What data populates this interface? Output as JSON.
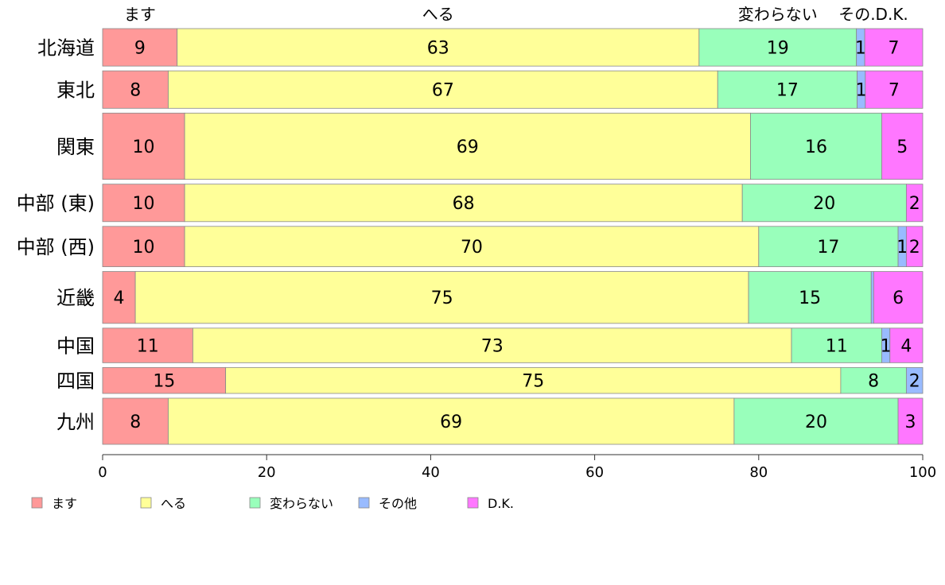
{
  "chart_data": {
    "type": "bar",
    "orientation": "horizontal",
    "stacked": true,
    "categories": [
      "北海道",
      "東北",
      "関東",
      "中部 (東)",
      "中部 (西)",
      "近畿",
      "中国",
      "四国",
      "九州"
    ],
    "series": [
      {
        "name": "ます",
        "color": "#ff9999",
        "values": [
          9,
          8,
          10,
          10,
          10,
          4,
          11,
          15,
          8
        ]
      },
      {
        "name": "へる",
        "color": "#ffff99",
        "values": [
          63,
          67,
          69,
          68,
          70,
          75,
          73,
          75,
          69
        ]
      },
      {
        "name": "変わらない",
        "color": "#99ffbb",
        "values": [
          19,
          17,
          16,
          20,
          17,
          15,
          11,
          8,
          20
        ]
      },
      {
        "name": "その他",
        "color": "#99bbff",
        "values": [
          1,
          1,
          0,
          0,
          1,
          0.3,
          1,
          2,
          0
        ]
      },
      {
        "name": "D.K.",
        "color": "#ff77ff",
        "values": [
          7,
          7,
          5,
          2,
          2,
          6,
          4,
          0,
          3
        ]
      }
    ],
    "value_labels": [
      [
        "9",
        "63",
        "19",
        "1",
        "7"
      ],
      [
        "8",
        "67",
        "17",
        "1",
        "7"
      ],
      [
        "10",
        "69",
        "16",
        "",
        "5"
      ],
      [
        "10",
        "68",
        "20",
        "",
        "2"
      ],
      [
        "10",
        "70",
        "17",
        "1",
        "2"
      ],
      [
        "4",
        "75",
        "15",
        "",
        "6"
      ],
      [
        "11",
        "73",
        "11",
        "1",
        "4"
      ],
      [
        "15",
        "75",
        "8",
        "2",
        ""
      ],
      [
        "8",
        "69",
        "20",
        "",
        "3"
      ]
    ],
    "bar_weights": [
      1.3,
      1.3,
      2.3,
      1.3,
      1.4,
      1.8,
      1.2,
      0.9,
      1.6
    ],
    "top_labels": [
      "ます",
      "へる",
      "変わらない",
      "その.D.K."
    ],
    "xticks": [
      0,
      20,
      40,
      60,
      80,
      100
    ],
    "xlim": [
      0,
      100
    ],
    "legend_position": "bottom"
  }
}
